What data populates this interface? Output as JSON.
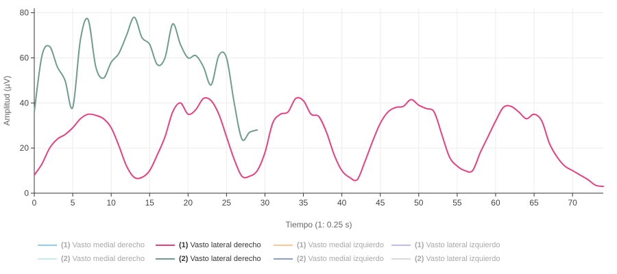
{
  "chart_data": {
    "type": "line",
    "xlabel": "Tiempo (1: 0.25 s)",
    "ylabel": "Amplitud (µV)",
    "xlim": [
      0,
      74
    ],
    "ylim": [
      0,
      82
    ],
    "xticks": [
      0,
      5,
      10,
      15,
      20,
      25,
      30,
      35,
      40,
      45,
      50,
      55,
      60,
      65,
      70
    ],
    "yticks": [
      0,
      20,
      40,
      60,
      80
    ],
    "grid": true,
    "legend_position": "bottom",
    "series": [
      {
        "prefix": "(1)",
        "name": "Vasto medial derecho",
        "color": "#8ecdf0",
        "visible": false,
        "x": [],
        "y": []
      },
      {
        "prefix": "(1)",
        "name": "Vasto lateral derecho",
        "color": "#ea3f7f",
        "visible": true,
        "x": [
          0,
          1,
          2,
          3,
          4,
          5,
          6,
          7,
          8,
          9,
          10,
          11,
          12,
          13,
          14,
          15,
          16,
          17,
          18,
          19,
          20,
          21,
          22,
          23,
          24,
          25,
          26,
          27,
          28,
          29,
          30,
          31,
          32,
          33,
          34,
          35,
          36,
          37,
          38,
          39,
          40,
          41,
          42,
          43,
          44,
          45,
          46,
          47,
          48,
          49,
          50,
          51,
          52,
          53,
          54,
          55,
          56,
          57,
          58,
          59,
          60,
          61,
          62,
          63,
          64,
          65,
          66,
          67,
          68,
          69,
          70,
          71,
          72,
          73,
          74
        ],
        "y": [
          8,
          13,
          20,
          24,
          26,
          29,
          33,
          35,
          34.5,
          33,
          29,
          21,
          12,
          7,
          7,
          10,
          17,
          25,
          36,
          40,
          35,
          37,
          42,
          41,
          35,
          25,
          15,
          7.5,
          7.5,
          10,
          18,
          31,
          35,
          36,
          42,
          41,
          35,
          34,
          27,
          17,
          10,
          7,
          6,
          14,
          23,
          31,
          36,
          38,
          38.5,
          41.5,
          39,
          37.5,
          36,
          26,
          16,
          12,
          10,
          10,
          18,
          25,
          32,
          38,
          38.5,
          36,
          33,
          35,
          32,
          22,
          16,
          12,
          10,
          8,
          6,
          3.5,
          3
        ]
      },
      {
        "prefix": "(1)",
        "name": "Vasto medial izquierdo",
        "color": "#f9c896",
        "visible": false,
        "x": [],
        "y": []
      },
      {
        "prefix": "(1)",
        "name": "Vasto lateral izquierdo",
        "color": "#c5b7f7",
        "visible": false,
        "x": [],
        "y": []
      },
      {
        "prefix": "(2)",
        "name": "Vasto medial derecho",
        "color": "#c7ecf0",
        "visible": false,
        "x": [],
        "y": []
      },
      {
        "prefix": "(2)",
        "name": "Vasto lateral derecho",
        "color": "#6e9c8f",
        "visible": true,
        "x": [
          0,
          1,
          2,
          3,
          4,
          5,
          6,
          7,
          8,
          9,
          10,
          11,
          12,
          13,
          14,
          15,
          16,
          17,
          18,
          19,
          20,
          21,
          22,
          23,
          24,
          25,
          26,
          27,
          28,
          29
        ],
        "y": [
          36,
          61,
          65,
          56,
          50,
          38,
          68,
          77,
          56,
          51,
          58,
          62,
          70,
          78,
          69,
          66,
          57,
          60,
          75,
          66,
          60,
          61,
          56,
          48,
          61,
          60,
          40,
          24,
          27,
          28
        ]
      },
      {
        "prefix": "(2)",
        "name": "Vasto medial izquierdo",
        "color": "#8a9ec8",
        "visible": false,
        "x": [],
        "y": []
      },
      {
        "prefix": "(2)",
        "name": "Vasto lateral izquierdo",
        "color": "#d9d9d9",
        "visible": false,
        "x": [],
        "y": []
      }
    ]
  }
}
